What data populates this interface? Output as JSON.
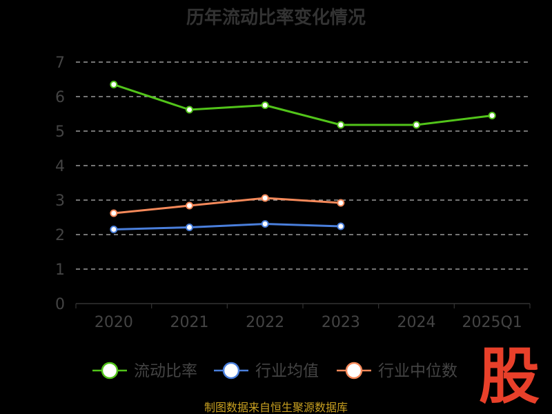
{
  "chart_data": {
    "type": "line",
    "title": "历年流动比率变化情况",
    "categories": [
      "2020",
      "2021",
      "2022",
      "2023",
      "2024",
      "2025Q1"
    ],
    "ylim": [
      0,
      7
    ],
    "yticks": [
      0,
      1,
      2,
      3,
      4,
      5,
      6,
      7
    ],
    "grid": true,
    "legend_position": "bottom",
    "series": [
      {
        "name": "流动比率",
        "color": "#52c41a",
        "values": [
          6.35,
          5.62,
          5.75,
          5.18,
          5.18,
          5.45
        ]
      },
      {
        "name": "行业均值",
        "color": "#4a7fdc",
        "values": [
          2.15,
          2.21,
          2.31,
          2.24,
          null,
          null
        ]
      },
      {
        "name": "行业中位数",
        "color": "#f5895a",
        "values": [
          2.62,
          2.84,
          3.06,
          2.92,
          null,
          null
        ]
      }
    ]
  },
  "source": "制图数据来自恒生聚源数据库",
  "logo_text": "股"
}
